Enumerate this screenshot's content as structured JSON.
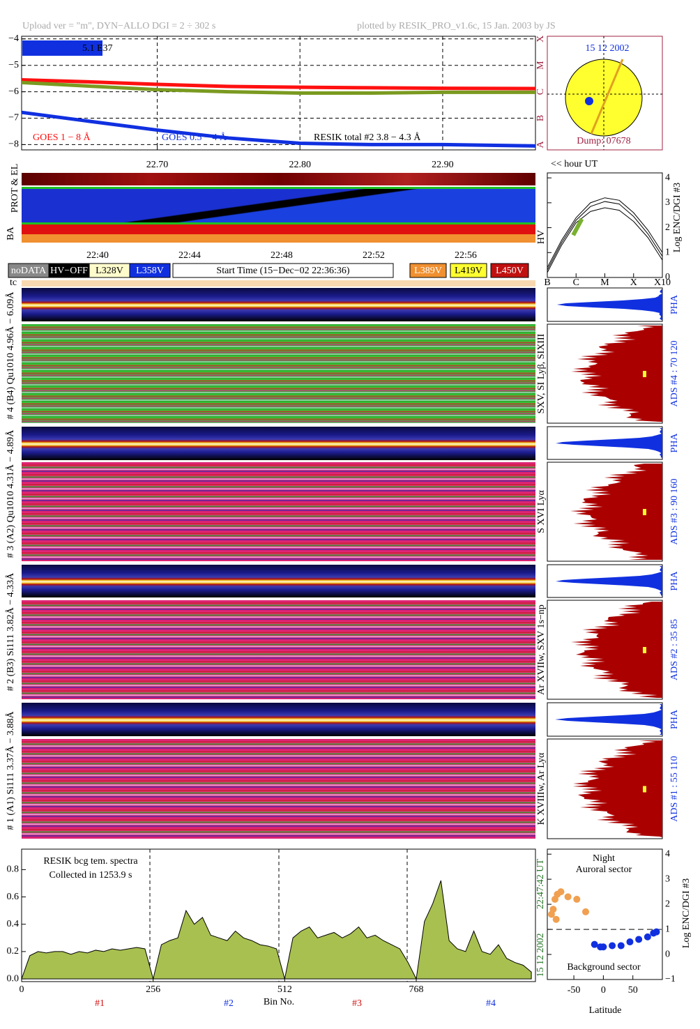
{
  "header": {
    "left": "Upload ver = \"m\", DYN−ALLO DGI =   2 ÷ 302 s",
    "right": "plotted by RESIK_PRO_v1.6c, 15 Jan. 2003 by JS"
  },
  "disk": {
    "date": "15 12 2002",
    "dump": "Dump: 07678"
  },
  "hour_label": "<< hour UT",
  "bar_label": "5.1 E37",
  "strip_labels": {
    "prot": "PROT & EL",
    "ba": "BA",
    "hv": "HV",
    "tc": "tc"
  },
  "time_ticks": [
    "22:40",
    "22:44",
    "22:48",
    "22:52",
    "22:56"
  ],
  "legend_boxes": [
    "noDATA",
    "HV−OFF",
    "L328V",
    "L358V",
    "Start Time (15−Dec−02 22:36:36)",
    "L389V",
    "L419V",
    "L450V"
  ],
  "channels": [
    {
      "label": "# 4 (B4) Qu1010 4.96Å − 6.09Å",
      "lines": "SXV, SI Lyβ, SIXIII",
      "ads": "ADS #4 :   70 120",
      "pha": "PHA"
    },
    {
      "label": "# 3 (A2) Qu1010  4.31Å − 4.89Å",
      "lines": "S XVI Lyα",
      "ads": "ADS #3 :   90 160",
      "pha": "PHA"
    },
    {
      "label": "# 2 (B3) Si111  3.82Å − 4.33Å",
      "lines": "Ar XVIIw, SXV 1s−np",
      "ads": "ADS #2 :   35  85",
      "pha": "PHA"
    },
    {
      "label": "# 1 (A1) Si111  3.37Å − 3.88Å",
      "lines": "K XVIIIw, Ar Lyα",
      "ads": "ADS #1 :   55 110",
      "pha": "PHA"
    }
  ],
  "sections": [
    "#1",
    "#2",
    "#3",
    "#4"
  ],
  "chart_data": [
    {
      "type": "line",
      "grid": true,
      "x": [
        22.605,
        22.65,
        22.7,
        22.75,
        22.8,
        22.85,
        22.9,
        22.965
      ],
      "xlim": [
        22.605,
        22.965
      ],
      "xticks": [
        {
          "value": 22.7,
          "label": "22.70"
        },
        {
          "value": 22.8,
          "label": "22.80"
        },
        {
          "value": 22.9,
          "label": "22.90"
        }
      ],
      "ylim": [
        -8.2,
        -3.9
      ],
      "yticks": [
        {
          "value": -8,
          "label": "−8"
        },
        {
          "value": -7,
          "label": "−7"
        },
        {
          "value": -6,
          "label": "−6"
        },
        {
          "value": -5,
          "label": "−5"
        },
        {
          "value": -4,
          "label": "−4"
        }
      ],
      "y2lim": [
        -8.2,
        -3.9
      ],
      "y2ticks": [
        {
          "value": -8,
          "label": "A"
        },
        {
          "value": -7,
          "label": "B"
        },
        {
          "value": -6,
          "label": "C"
        },
        {
          "value": -5,
          "label": "M"
        },
        {
          "value": -4,
          "label": "X"
        }
      ],
      "series": [
        {
          "name": "GOES 1 − 8 Å",
          "color": "#ff1010",
          "values": [
            -5.55,
            -5.62,
            -5.72,
            -5.8,
            -5.83,
            -5.85,
            -5.87,
            -5.88
          ]
        },
        {
          "name": "GOES 0.5 − 4 Å",
          "color": "#1030e0",
          "values": [
            -6.78,
            -7.1,
            -7.45,
            -7.75,
            -7.95,
            -8.0,
            -8.0,
            -8.05
          ]
        },
        {
          "name": "RESIK total #2  3.8 − 4.3 Å",
          "color": "#7a9a20",
          "values": [
            -5.65,
            -5.78,
            -5.92,
            -6.0,
            -6.05,
            -6.05,
            -6.02,
            -6.02
          ]
        }
      ]
    },
    {
      "type": "line",
      "y_label": "Log ENC/DGI #3",
      "xlim": [
        -7,
        -3
      ],
      "xticks": [
        {
          "value": -7,
          "label": "B"
        },
        {
          "value": -6,
          "label": "C"
        },
        {
          "value": -5,
          "label": "M"
        },
        {
          "value": -4,
          "label": "X"
        },
        {
          "value": -3,
          "label": "X10"
        }
      ],
      "ylim": [
        0,
        4.2
      ],
      "yticks": [
        0,
        1,
        2,
        3,
        4
      ],
      "series": [
        {
          "color": "#000000",
          "x": [
            -7,
            -6.5,
            -6,
            -5.5,
            -5,
            -4.5,
            -4,
            -3.5,
            -3
          ],
          "values": [
            0.4,
            1.5,
            2.4,
            3.0,
            3.2,
            3.1,
            2.6,
            1.9,
            1.0
          ]
        },
        {
          "color": "#000000",
          "x": [
            -7,
            -6.5,
            -6,
            -5.5,
            -5,
            -4.5,
            -4,
            -3.5,
            -3
          ],
          "values": [
            0.3,
            1.4,
            2.3,
            2.85,
            3.05,
            2.95,
            2.45,
            1.75,
            0.85
          ]
        },
        {
          "color": "#000000",
          "x": [
            -7,
            -6.5,
            -6,
            -5.5,
            -5,
            -4.5,
            -4,
            -3.5,
            -3
          ],
          "values": [
            0.2,
            1.3,
            2.2,
            2.65,
            2.8,
            2.7,
            2.25,
            1.6,
            0.7
          ]
        },
        {
          "color": "#7ab030",
          "x": [
            -6.1,
            -5.8
          ],
          "values": [
            1.7,
            2.35
          ]
        }
      ]
    },
    {
      "type": "area",
      "color": "#a8c050",
      "x_label": "Bin No.",
      "annotations": [
        "RESIK bcg tem. spectra",
        "Collected in  1253.9 s"
      ],
      "side_labels": [
        "22:47:42 UT",
        "15 12 2002"
      ],
      "xlim": [
        0,
        1000
      ],
      "xticks": [
        0,
        256,
        512,
        768
      ],
      "ylim": [
        -0.02,
        0.95
      ],
      "yticks": [
        {
          "value": 0,
          "label": "0.0"
        },
        {
          "value": 0.2,
          "label": "0.2"
        },
        {
          "value": 0.4,
          "label": "0.4"
        },
        {
          "value": 0.6,
          "label": "0.6"
        },
        {
          "value": 0.8,
          "label": "0.8"
        }
      ],
      "x": [
        0,
        16,
        32,
        48,
        64,
        80,
        96,
        112,
        128,
        144,
        160,
        176,
        192,
        208,
        224,
        240,
        256,
        272,
        288,
        304,
        320,
        336,
        352,
        368,
        384,
        400,
        416,
        432,
        448,
        464,
        480,
        496,
        512,
        528,
        544,
        560,
        576,
        592,
        608,
        624,
        640,
        656,
        672,
        688,
        704,
        720,
        736,
        752,
        768,
        784,
        800,
        816,
        832,
        848,
        864,
        880,
        896,
        912,
        928,
        944,
        960,
        976,
        992
      ],
      "values": [
        0.0,
        0.17,
        0.2,
        0.19,
        0.2,
        0.2,
        0.18,
        0.2,
        0.19,
        0.21,
        0.2,
        0.22,
        0.21,
        0.22,
        0.23,
        0.22,
        0.0,
        0.25,
        0.28,
        0.3,
        0.5,
        0.4,
        0.45,
        0.32,
        0.3,
        0.28,
        0.35,
        0.3,
        0.28,
        0.25,
        0.24,
        0.22,
        0.0,
        0.3,
        0.35,
        0.38,
        0.3,
        0.32,
        0.34,
        0.3,
        0.33,
        0.38,
        0.3,
        0.32,
        0.28,
        0.25,
        0.22,
        0.12,
        0.0,
        0.42,
        0.55,
        0.72,
        0.28,
        0.22,
        0.2,
        0.35,
        0.2,
        0.18,
        0.25,
        0.15,
        0.12,
        0.1,
        0.05
      ]
    },
    {
      "type": "scatter",
      "x_label": "Latitude",
      "y_label": "Log ENC/DGI #3",
      "annotations": [
        "Night",
        "Auroral sector",
        "Background sector"
      ],
      "hline": 1,
      "xlim": [
        -95,
        100
      ],
      "xticks": [
        -50,
        0,
        50
      ],
      "ylim": [
        -1,
        4.2
      ],
      "yticks": [
        {
          "value": -1,
          "label": "−1"
        },
        0,
        1,
        2,
        3,
        4
      ],
      "series": [
        {
          "color": "#f0a050",
          "x": [
            -88,
            -85,
            -82,
            -80,
            -78,
            -72,
            -60,
            -45,
            -30
          ],
          "values": [
            1.6,
            1.8,
            2.2,
            1.4,
            2.4,
            2.5,
            2.3,
            2.2,
            1.7
          ]
        },
        {
          "color": "#1030e0",
          "x": [
            -15,
            -5,
            0,
            15,
            30,
            45,
            60,
            75,
            85,
            90
          ],
          "values": [
            0.4,
            0.3,
            0.3,
            0.35,
            0.35,
            0.5,
            0.6,
            0.7,
            0.85,
            0.9
          ]
        }
      ]
    }
  ]
}
